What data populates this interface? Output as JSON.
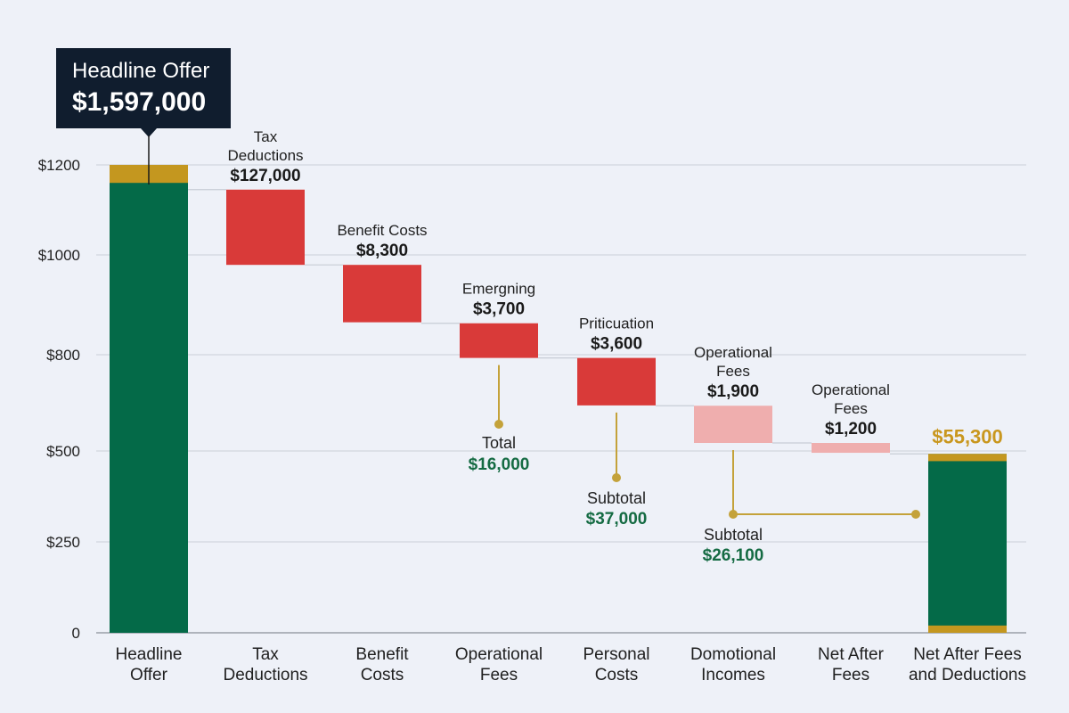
{
  "chart_data": {
    "type": "bar",
    "subtype": "waterfall",
    "y_ticks": [
      "$1200",
      "$1000",
      "$800",
      "$500",
      "$250",
      "0"
    ],
    "grid": true,
    "colors": {
      "total": "#046a48",
      "total_cap": "#c4971f",
      "decrease": "#d93a39",
      "decrease_light": "#efaeae",
      "connector": "#c4a23a",
      "callout": "#101d2e"
    },
    "categories": [
      {
        "label": "Headline\nOffer",
        "kind": "total",
        "bottom": 0,
        "top": 1200,
        "cap": 40
      },
      {
        "label": "Tax\nDeductions",
        "kind": "decrease",
        "bottom": 980,
        "top": 1145,
        "bar_label": "Tax\nDeductions",
        "bar_value": "$127,000"
      },
      {
        "label": "Benefit\nCosts",
        "kind": "decrease",
        "bottom": 865,
        "top": 980,
        "bar_label": "Benefit Costs",
        "bar_value": "$8,300"
      },
      {
        "label": "Operational\nFees",
        "kind": "decrease",
        "bottom": 790,
        "top": 863,
        "bar_label": "Emergning",
        "bar_value": "$3,700"
      },
      {
        "label": "Personal\nCosts",
        "kind": "decrease",
        "bottom": 642,
        "top": 790,
        "bar_label": "Priticuation",
        "bar_value": "$3,600"
      },
      {
        "label": "Domotional\nIncomes",
        "kind": "decrease_light",
        "bottom": 525,
        "top": 641,
        "bar_label": "Operational\nFees",
        "bar_value": "$1,900"
      },
      {
        "label": "Net After\nFees",
        "kind": "decrease_light",
        "bottom": 495,
        "top": 525,
        "bar_label": "Operational\nFees",
        "bar_value": "$1,200"
      },
      {
        "label": "Net After Fees\nand Deductions",
        "kind": "total",
        "bottom": 0,
        "top": 492,
        "cap": 20,
        "base_cap": 20,
        "top_value": "$55,300"
      }
    ],
    "callout": {
      "title": "Headline Offer",
      "value": "$1,597,000"
    },
    "annotations": [
      {
        "label": "Total",
        "value": "$16,000"
      },
      {
        "label": "Subtotal",
        "value": "$37,000"
      },
      {
        "label": "Subtotal",
        "value": "$26,100"
      }
    ]
  }
}
